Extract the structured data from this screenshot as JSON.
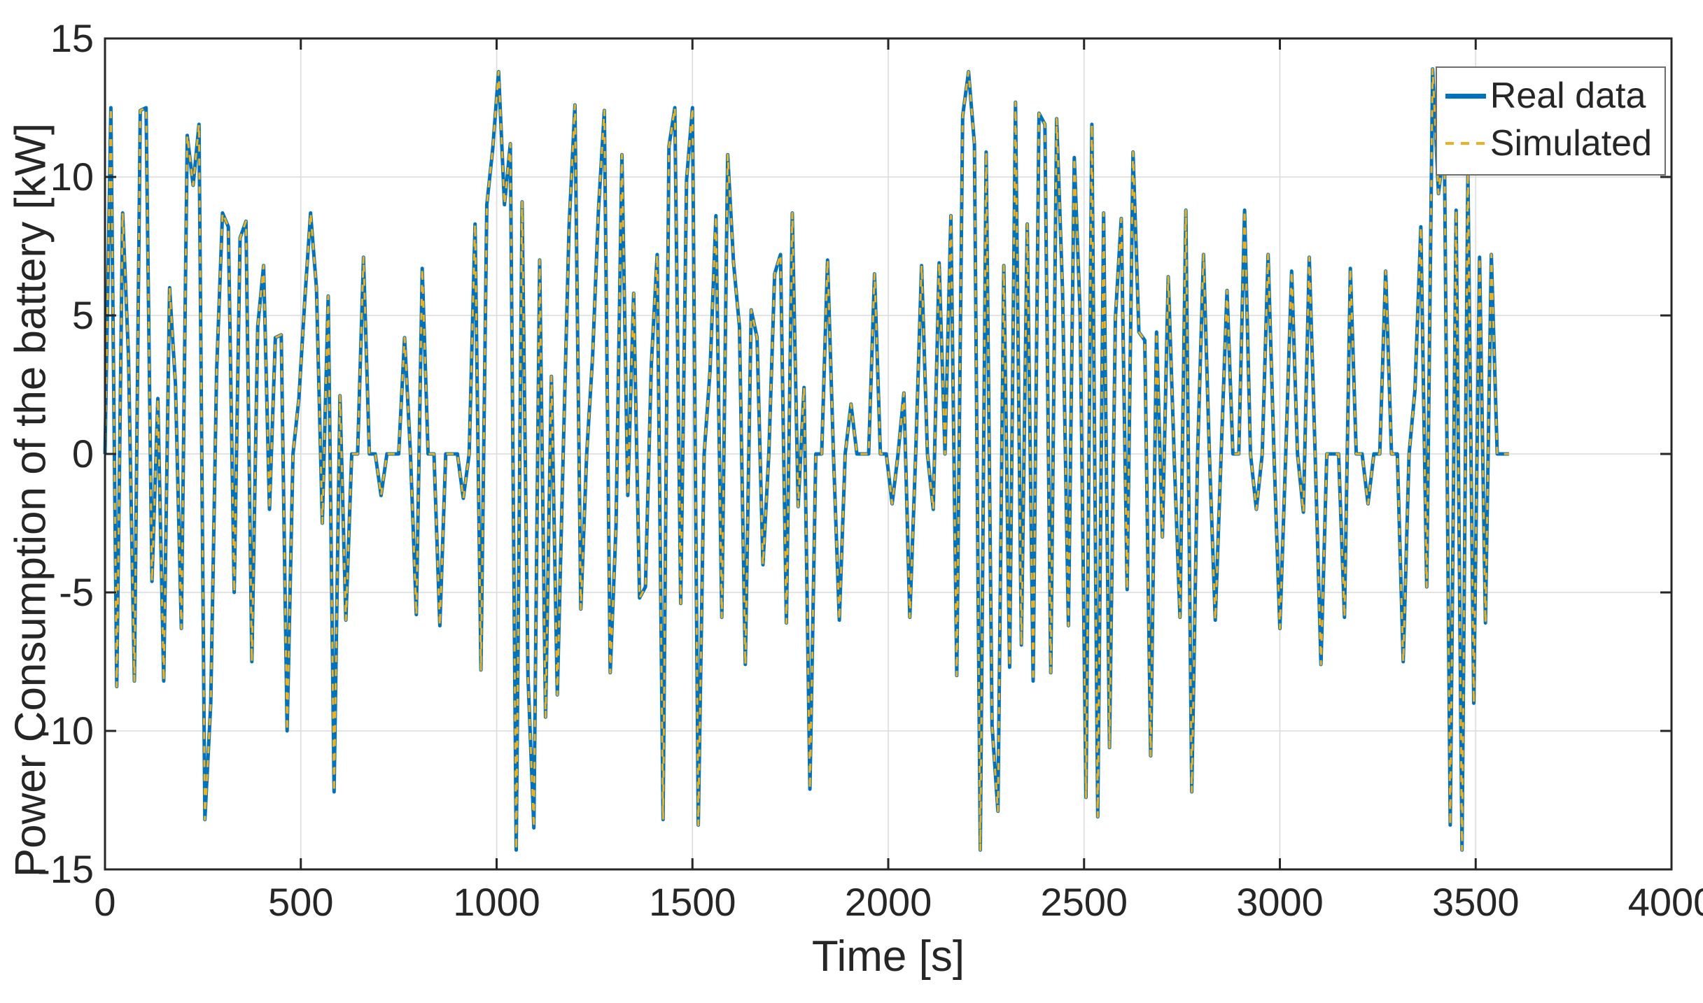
{
  "figure": {
    "xlabel": "Time [s]",
    "ylabel": "Power Consumption of the battery [kW]"
  },
  "chart_data": {
    "type": "line",
    "title": "",
    "xlabel": "Time [s]",
    "ylabel": "Power Consumption of the battery [kW]",
    "xlim": [
      0,
      4000
    ],
    "ylim": [
      -15,
      15
    ],
    "xticks": [
      0,
      500,
      1000,
      1500,
      2000,
      2500,
      3000,
      3500,
      4000
    ],
    "yticks": [
      -15,
      -10,
      -5,
      0,
      5,
      10,
      15
    ],
    "grid": true,
    "legend_position": "northeast",
    "x_start": 0,
    "x_step": 15,
    "n_points": 240,
    "colors": {
      "grid": "#dcdcdc",
      "axis": "#262626",
      "real": "#0072BD",
      "simulated": "#EDB120"
    },
    "series": [
      {
        "name": "Real data",
        "color": "#0072BD",
        "style": "solid",
        "values": [
          0,
          12.5,
          -8.4,
          8.7,
          3.5,
          -8.2,
          12.4,
          12.5,
          -4.6,
          2.0,
          -8.2,
          6.0,
          2.5,
          -6.3,
          11.5,
          9.7,
          11.9,
          -13.2,
          -9.0,
          3.0,
          8.7,
          8.2,
          -5.0,
          7.8,
          8.4,
          -7.5,
          4.6,
          6.8,
          -2.0,
          4.2,
          4.3,
          -10.0,
          0,
          2.0,
          5.5,
          8.7,
          6.0,
          -2.5,
          5.7,
          -12.2,
          2.1,
          -6.0,
          0,
          0,
          7.1,
          0,
          0,
          -1.5,
          0,
          0,
          0,
          4.2,
          0,
          -5.8,
          6.7,
          0,
          0,
          -6.2,
          0,
          0,
          0,
          -1.6,
          0,
          8.3,
          -7.8,
          9.0,
          11.0,
          13.8,
          9.0,
          11.2,
          -14.3,
          9.1,
          -8.0,
          -13.5,
          7.0,
          -9.5,
          2.8,
          -8.7,
          0,
          8.2,
          12.6,
          -5.6,
          0,
          3.5,
          8.8,
          12.4,
          -7.9,
          -2.6,
          10.8,
          -1.5,
          5.8,
          -5.2,
          -4.8,
          3.2,
          7.2,
          -13.2,
          11.1,
          12.5,
          -5.4,
          9.9,
          12.5,
          -13.4,
          0,
          3.0,
          8.6,
          -5.9,
          10.8,
          6.9,
          4.6,
          -7.6,
          5.2,
          4.2,
          -4.0,
          0,
          6.5,
          7.2,
          -6.1,
          8.7,
          -1.9,
          2.4,
          -12.1,
          0,
          0,
          7.0,
          0,
          -6.0,
          0,
          1.8,
          0,
          0,
          0,
          6.5,
          0,
          0,
          -1.8,
          0,
          2.2,
          -5.9,
          0,
          6.8,
          0,
          -2.0,
          6.9,
          0,
          8.6,
          -8.0,
          12.2,
          13.8,
          11.2,
          -14.3,
          10.9,
          -9.8,
          -12.9,
          6.8,
          -7.7,
          12.7,
          -6.9,
          8.3,
          -8.2,
          12.3,
          11.9,
          -7.9,
          12.1,
          5.9,
          -6.2,
          10.7,
          5.0,
          -12.4,
          11.9,
          -13.1,
          8.7,
          -10.6,
          4.9,
          8.5,
          -4.9,
          10.9,
          4.4,
          4.1,
          -10.9,
          4.4,
          -3.0,
          6.4,
          0,
          -5.9,
          8.8,
          -12.2,
          0,
          7.2,
          0,
          -6.0,
          0,
          5.9,
          0,
          0,
          8.8,
          0,
          -2.0,
          0,
          7.2,
          0,
          -6.3,
          0,
          6.6,
          0,
          -2.1,
          7.1,
          0,
          -7.6,
          0,
          0,
          0,
          -5.9,
          6.7,
          0,
          0,
          -1.8,
          0,
          0,
          6.6,
          0,
          0,
          -7.5,
          0,
          2.3,
          8.2,
          -4.8,
          13.9,
          9.4,
          11.2,
          -13.4,
          8.8,
          -14.3,
          10.2,
          -9.0,
          7.1,
          -6.1,
          7.2,
          0,
          0,
          0
        ]
      },
      {
        "name": "Simulated",
        "color": "#EDB120",
        "style": "dashed",
        "values": [
          0,
          12.5,
          -8.4,
          8.7,
          3.5,
          -8.2,
          12.4,
          12.5,
          -4.6,
          2.0,
          -8.2,
          6.0,
          2.5,
          -6.3,
          11.5,
          9.7,
          11.9,
          -13.2,
          -9.0,
          3.0,
          8.7,
          8.2,
          -5.0,
          7.8,
          8.4,
          -7.5,
          4.6,
          6.8,
          -2.0,
          4.2,
          4.3,
          -10.0,
          0,
          2.0,
          5.5,
          8.7,
          6.0,
          -2.5,
          5.7,
          -12.2,
          2.1,
          -6.0,
          0,
          0,
          7.1,
          0,
          0,
          -1.5,
          0,
          0,
          0,
          4.2,
          0,
          -5.8,
          6.7,
          0,
          0,
          -6.2,
          0,
          0,
          0,
          -1.6,
          0,
          8.3,
          -7.8,
          9.0,
          11.0,
          13.8,
          9.0,
          11.2,
          -14.3,
          9.1,
          -8.0,
          -13.5,
          7.0,
          -9.5,
          2.8,
          -8.7,
          0,
          8.2,
          12.6,
          -5.6,
          0,
          3.5,
          8.8,
          12.4,
          -7.9,
          -2.6,
          10.8,
          -1.5,
          5.8,
          -5.2,
          -4.8,
          3.2,
          7.2,
          -13.2,
          11.1,
          12.5,
          -5.4,
          9.9,
          12.5,
          -13.4,
          0,
          3.0,
          8.6,
          -5.9,
          10.8,
          6.9,
          4.6,
          -7.6,
          5.2,
          4.2,
          -4.0,
          0,
          6.5,
          7.2,
          -6.1,
          8.7,
          -1.9,
          2.4,
          -12.1,
          0,
          0,
          7.0,
          0,
          -6.0,
          0,
          1.8,
          0,
          0,
          0,
          6.5,
          0,
          0,
          -1.8,
          0,
          2.2,
          -5.9,
          0,
          6.8,
          0,
          -2.0,
          6.9,
          0,
          8.6,
          -8.0,
          12.2,
          13.8,
          11.2,
          -14.3,
          10.9,
          -9.8,
          -12.9,
          6.8,
          -7.7,
          12.7,
          -6.9,
          8.3,
          -8.2,
          12.3,
          11.9,
          -7.9,
          12.1,
          5.9,
          -6.2,
          10.7,
          5.0,
          -12.4,
          11.9,
          -13.1,
          8.7,
          -10.6,
          4.9,
          8.5,
          -4.9,
          10.9,
          4.4,
          4.1,
          -10.9,
          4.4,
          -3.0,
          6.4,
          0,
          -5.9,
          8.8,
          -12.2,
          0,
          7.2,
          0,
          -6.0,
          0,
          5.9,
          0,
          0,
          8.8,
          0,
          -2.0,
          0,
          7.2,
          0,
          -6.3,
          0,
          6.6,
          0,
          -2.1,
          7.1,
          0,
          -7.6,
          0,
          0,
          0,
          -5.9,
          6.7,
          0,
          0,
          -1.8,
          0,
          0,
          6.6,
          0,
          0,
          -7.5,
          0,
          2.3,
          8.2,
          -4.8,
          13.9,
          9.4,
          11.2,
          -13.4,
          8.8,
          -14.3,
          10.2,
          -9.0,
          7.1,
          -6.1,
          7.2,
          0,
          0,
          0
        ]
      }
    ]
  }
}
